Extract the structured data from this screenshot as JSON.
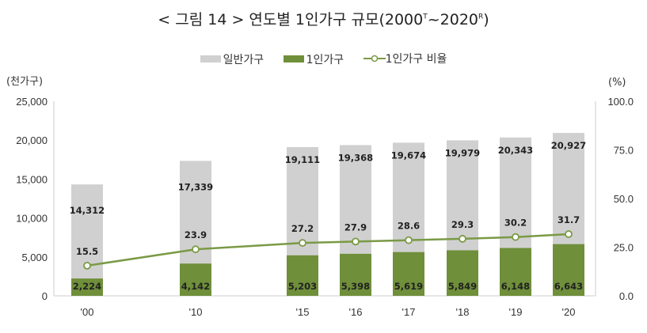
{
  "title": {
    "prefix": "< 그림 14 > 연도별 1인가구 규모(2000",
    "sup1": "T",
    "mid": "~2020",
    "sup2": "R",
    "suffix": ")"
  },
  "chart_data": {
    "type": "bar",
    "categories": [
      "'00",
      "'10",
      "'15",
      "'16",
      "'17",
      "'18",
      "'19",
      "'20"
    ],
    "series": [
      {
        "name": "일반가구",
        "type": "bar",
        "axis": "left",
        "color": "#d0d0d0",
        "values": [
          14312,
          17339,
          19111,
          19368,
          19674,
          19979,
          20343,
          20927
        ],
        "labels": [
          "14,312",
          "17,339",
          "19,111",
          "19,368",
          "19,674",
          "19,979",
          "20,343",
          "20,927"
        ]
      },
      {
        "name": "1인가구",
        "type": "bar",
        "axis": "left",
        "color": "#6f8f3a",
        "values": [
          2224,
          4142,
          5203,
          5398,
          5619,
          5849,
          6148,
          6643
        ],
        "labels": [
          "2,224",
          "4,142",
          "5,203",
          "5,398",
          "5,619",
          "5,849",
          "6,148",
          "6,643"
        ]
      },
      {
        "name": "1인가구 비율",
        "type": "line",
        "axis": "right",
        "color": "#7a9a45",
        "values": [
          15.5,
          23.9,
          27.2,
          27.9,
          28.6,
          29.3,
          30.2,
          31.7
        ],
        "labels": [
          "15.5",
          "23.9",
          "27.2",
          "27.9",
          "28.6",
          "29.3",
          "30.2",
          "31.7"
        ]
      }
    ],
    "ylabel": "(천가구)",
    "y2label": "(%)",
    "ylim": [
      0,
      25000
    ],
    "y2lim": [
      0,
      100
    ],
    "yticks": [
      "0",
      "5,000",
      "10,000",
      "15,000",
      "20,000",
      "25,000"
    ],
    "y2ticks": [
      "0.0",
      "25.0",
      "50.0",
      "75.0",
      "100.0"
    ],
    "legend": "top",
    "grid": false
  }
}
